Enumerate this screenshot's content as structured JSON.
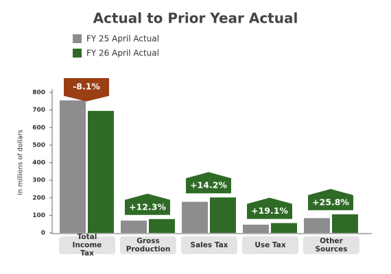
{
  "chart_data": {
    "type": "bar",
    "title": "Actual to Prior Year Actual",
    "y_label": "In millions of dollars",
    "categories": [
      "Total Income Tax",
      "Gross Production",
      "Sales Tax",
      "Use Tax",
      "Other Sources"
    ],
    "series": [
      {
        "name": "FY 25 April Actual",
        "color": "#8d8d90",
        "values": [
          755,
          70,
          177,
          47,
          84
        ]
      },
      {
        "name": "FY 26 April Actual",
        "color": "#2f6b26",
        "values": [
          695,
          79,
          202,
          56,
          106
        ]
      }
    ],
    "annotations": [
      "-8.1%",
      "+12.3%",
      "+14.2%",
      "+19.1%",
      "+25.8%"
    ],
    "annotation_colors": [
      "#9a3e14",
      "#2f6b26",
      "#2f6b26",
      "#2f6b26",
      "#2f6b26"
    ],
    "ylim": [
      0,
      800
    ],
    "yticks": [
      0,
      100,
      200,
      300,
      400,
      500,
      600,
      700,
      800
    ]
  }
}
